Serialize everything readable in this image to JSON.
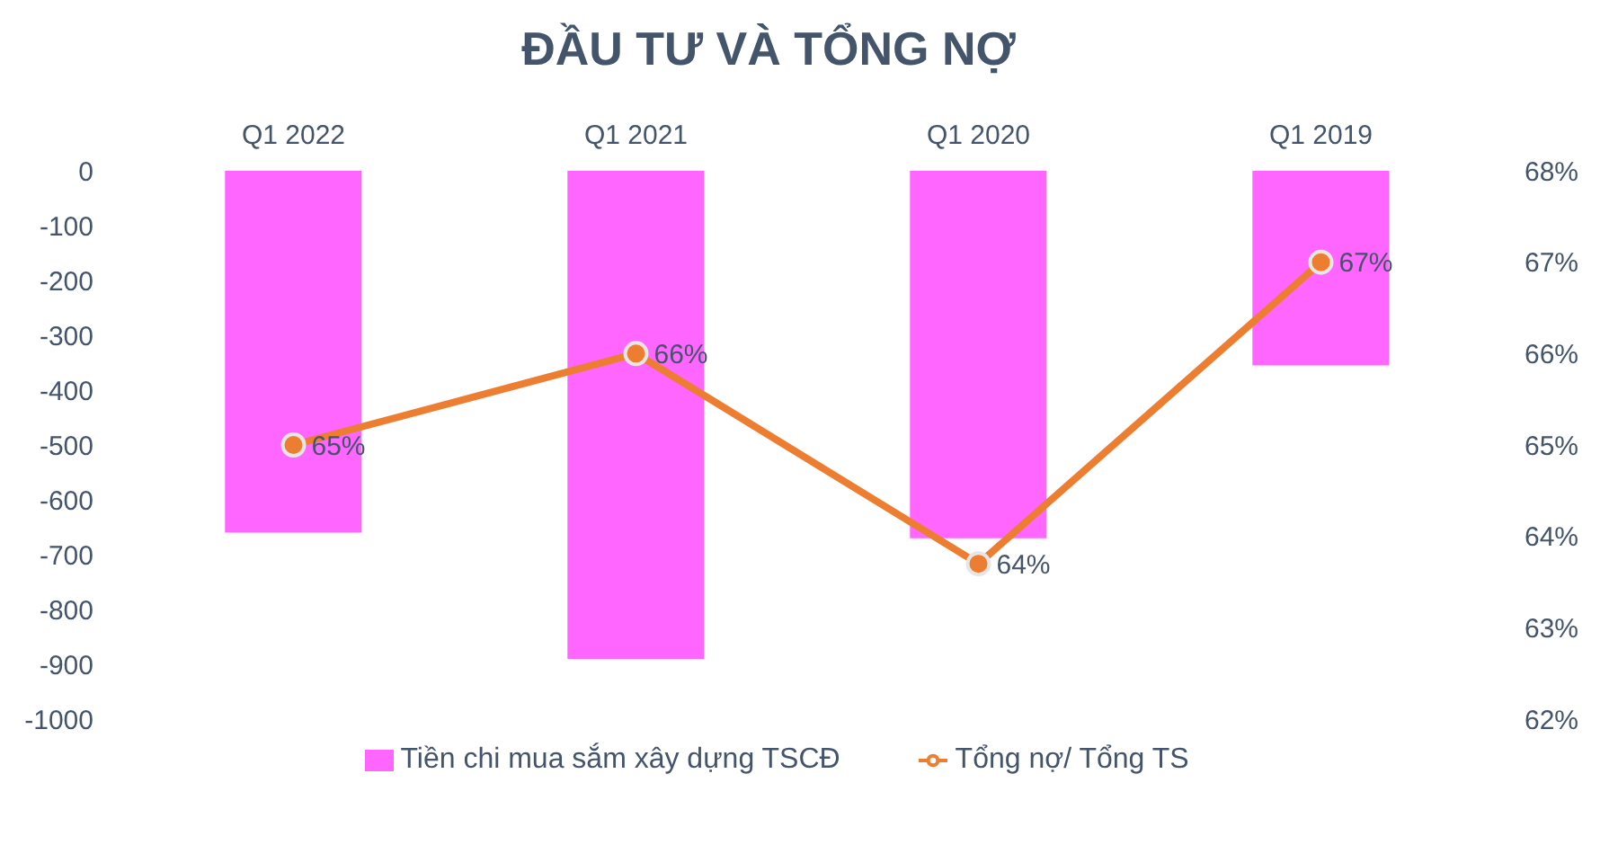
{
  "chart_data": {
    "type": "bar",
    "title": "ĐẦU TƯ VÀ TỔNG NỢ",
    "categories": [
      "Q1 2022",
      "Q1 2021",
      "Q1 2020",
      "Q1 2019"
    ],
    "series": [
      {
        "name": "Tiền chi mua sắm xây dựng TSCĐ",
        "color": "#ff66ff",
        "values": [
          -660,
          -890,
          -670,
          -355
        ]
      },
      {
        "name": "Tổng nợ/ Tổng TS",
        "type": "line",
        "axis": "y2",
        "color": "#ed7d31",
        "values": [
          65,
          66,
          63.7,
          67
        ],
        "value_labels": [
          "65%",
          "66%",
          "64%",
          "67%"
        ]
      }
    ],
    "ylim": [
      -1000,
      0
    ],
    "yticks": [
      -1000,
      -900,
      -800,
      -700,
      -600,
      -500,
      -400,
      -300,
      -200,
      -100,
      0
    ],
    "y2lim": [
      62,
      68
    ],
    "y2ticks": [
      {
        "value": 62,
        "label": "62%"
      },
      {
        "value": 63,
        "label": "63%"
      },
      {
        "value": 64,
        "label": "64%"
      },
      {
        "value": 65,
        "label": "65%"
      },
      {
        "value": 66,
        "label": "66%"
      },
      {
        "value": 67,
        "label": "67%"
      },
      {
        "value": 68,
        "label": "68%"
      }
    ],
    "marker": "circle",
    "legend": "bottom"
  }
}
